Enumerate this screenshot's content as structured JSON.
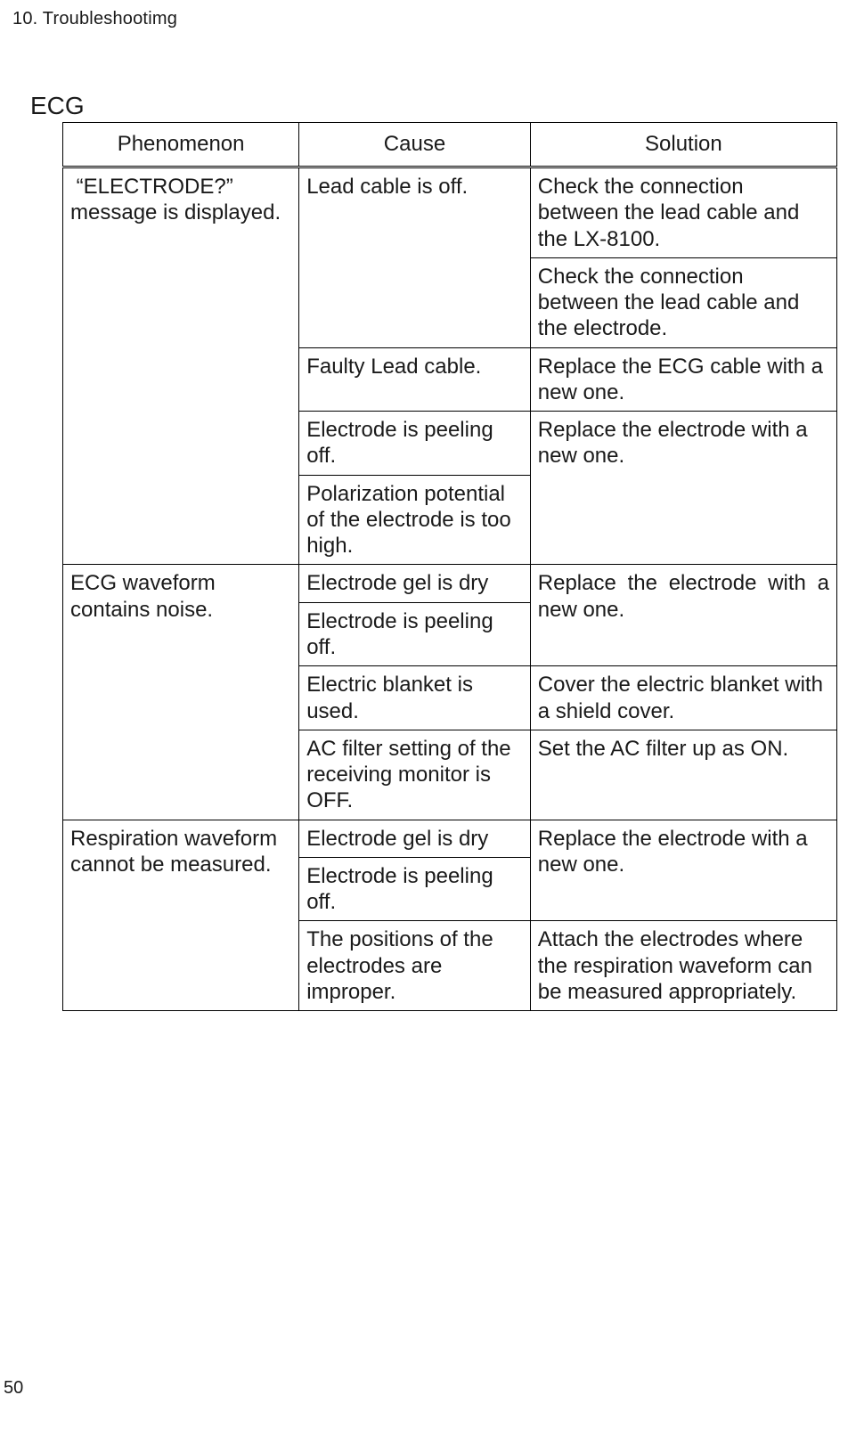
{
  "chapter_heading": "10. Troubleshootimg",
  "section_heading": "ECG",
  "page_number": "50",
  "table": {
    "columns": {
      "phenomenon": "Phenomenon",
      "cause": "Cause",
      "solution": "Solution"
    },
    "cells": {
      "p1": " “ELECTRODE?” message is displayed.",
      "p1_c1": "Lead cable is off.",
      "p1_c1_s1": "Check the connection between the lead cable and the LX-8100.",
      "p1_c1_s2": "Check the connection between the lead cable and the electrode.",
      "p1_c2": "Faulty Lead cable.",
      "p1_c2_s1": "Replace the ECG cable with a new one.",
      "p1_c3": "Electrode is peeling off.",
      "p1_c3_s1": "Replace the electrode with a new one.",
      "p1_c4": "Polarization potential of the electrode is too high.",
      "p2": "ECG waveform contains noise.",
      "p2_c1": "Electrode gel is dry",
      "p2_c1_s1": "Replace the electrode with a new one.",
      "p2_c2": "Electrode is peeling off.",
      "p2_c3": "Electric blanket is used.",
      "p2_c3_s1": "Cover the electric blanket with a shield cover.",
      "p2_c4": "AC filter setting of the receiving monitor is OFF.",
      "p2_c4_s1": "Set the AC filter up as ON.",
      "p3": "Respiration waveform cannot be measured.",
      "p3_c1": "Electrode gel is dry",
      "p3_c1_s1": "Replace the electrode with a new one.",
      "p3_c2": "Electrode is peeling off.",
      "p3_c3": "The positions of the electrodes are improper.",
      "p3_c3_s1": "Attach the electrodes where the respiration waveform can be measured appropriately."
    }
  }
}
